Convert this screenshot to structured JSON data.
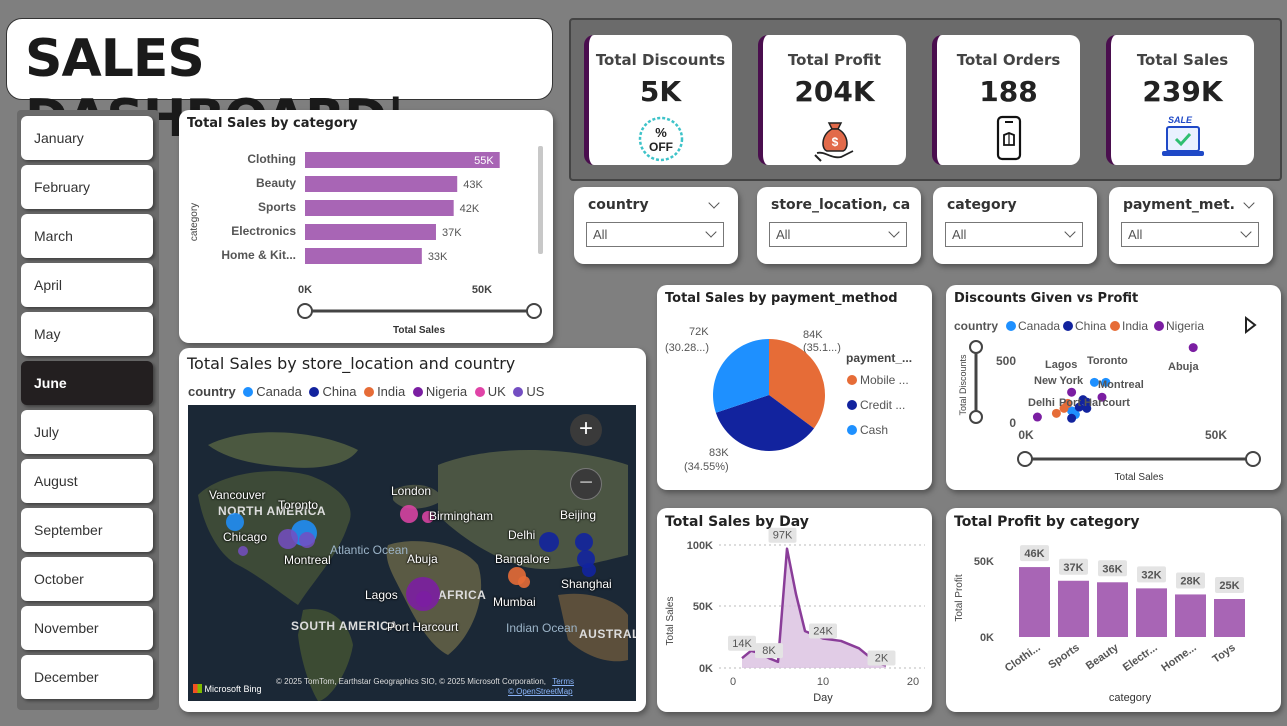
{
  "header": {
    "title": "SALES DASHBOARD|"
  },
  "kpis": [
    {
      "label": "Total Discounts",
      "value": "5K",
      "icon": "percent-off-badge-icon"
    },
    {
      "label": "Total Profit",
      "value": "204K",
      "icon": "money-bag-icon"
    },
    {
      "label": "Total Orders",
      "value": "188",
      "icon": "smartphone-order-icon"
    },
    {
      "label": "Total Sales",
      "value": "239K",
      "icon": "laptop-sale-icon"
    }
  ],
  "months": [
    "January",
    "February",
    "March",
    "April",
    "May",
    "June",
    "July",
    "August",
    "September",
    "October",
    "November",
    "December"
  ],
  "selected_month": "June",
  "slicers": [
    {
      "label": "country",
      "value": "All"
    },
    {
      "label": "store_location, ca...",
      "value": "All"
    },
    {
      "label": "category",
      "value": "All"
    },
    {
      "label": "payment_met...",
      "value": "All"
    }
  ],
  "colors": {
    "accent": "#a865b5",
    "nigeria": "#7b1ea2",
    "canada": "#1e90ff",
    "china": "#12239e",
    "india": "#e66c37",
    "uk": "#e044a7",
    "us": "#744ec2",
    "kpi_border": "#4a0e4e"
  },
  "sales_by_category": {
    "title": "Total Sales by category",
    "ylabel": "category",
    "xlabel": "Total Sales",
    "ticks": [
      "0K",
      "50K"
    ],
    "rows": [
      {
        "label": "Clothing",
        "value_label": "55K"
      },
      {
        "label": "Beauty",
        "value_label": "43K"
      },
      {
        "label": "Sports",
        "value_label": "42K"
      },
      {
        "label": "Electronics",
        "value_label": "37K"
      },
      {
        "label": "Home & Kit...",
        "value_label": "33K"
      }
    ]
  },
  "map": {
    "title": "Total Sales by store_location and country",
    "legend_title": "country",
    "legend": [
      {
        "name": "Canada",
        "color": "#1e90ff"
      },
      {
        "name": "China",
        "color": "#12239e"
      },
      {
        "name": "India",
        "color": "#e66c37"
      },
      {
        "name": "Nigeria",
        "color": "#7b1ea2"
      },
      {
        "name": "UK",
        "color": "#e044a7"
      },
      {
        "name": "US",
        "color": "#744ec2"
      }
    ],
    "cities": [
      "Vancouver",
      "Toronto",
      "Chicago",
      "Montreal",
      "London",
      "Birmingham",
      "Delhi",
      "Beijing",
      "Bangalore",
      "Abuja",
      "Lagos",
      "Port Harcourt",
      "Mumbai",
      "Shanghai"
    ],
    "regions": [
      "NORTH AMERICA",
      "AFRICA",
      "SOUTH AMERICA",
      "AUSTRALIA"
    ],
    "oceans": [
      "Atlantic Ocean",
      "Indian Ocean"
    ],
    "attribution": "© 2025 TomTom, Earthstar Geographics SIO, © 2025 Microsoft Corporation,",
    "terms": "Terms",
    "osm": "© OpenStreetMap",
    "bing": "Microsoft Bing"
  },
  "payment": {
    "title": "Total Sales by payment_method",
    "legend_title": "payment_...",
    "slices": [
      {
        "name": "Mobile ...",
        "value": "84K",
        "pct": "(35.1...)",
        "color": "#e66c37"
      },
      {
        "name": "Credit ...",
        "value": "83K",
        "pct": "(34.55%)",
        "color": "#12239e"
      },
      {
        "name": "Cash",
        "value": "72K",
        "pct": "(30.28...)",
        "color": "#1e90ff"
      }
    ]
  },
  "discounts": {
    "title": "Discounts Given vs Profit",
    "legend_title": "country",
    "legend": [
      {
        "name": "Canada",
        "color": "#1e90ff"
      },
      {
        "name": "China",
        "color": "#12239e"
      },
      {
        "name": "India",
        "color": "#e66c37"
      },
      {
        "name": "Nigeria",
        "color": "#7b1ea2"
      }
    ],
    "ylabel": "Total Discounts",
    "xlabel": "Total Sales",
    "yticks": [
      "500",
      "0"
    ],
    "xticks": [
      "0K",
      "50K"
    ],
    "labels": [
      "Lagos",
      "Toronto",
      "New York",
      "Montreal",
      "Abuja",
      "Delhi",
      "Port Harcourt"
    ]
  },
  "sales_by_day": {
    "title": "Total Sales by Day",
    "xlabel": "Day",
    "ylabel": "Total Sales",
    "yticks": [
      "100K",
      "50K",
      "0K"
    ],
    "xticks": [
      "0",
      "10",
      "20"
    ],
    "annotations": [
      "14K",
      "8K",
      "97K",
      "24K",
      "2K"
    ]
  },
  "profit_by_category": {
    "title": "Total Profit by category",
    "xlabel": "category",
    "ylabel": "Total Profit",
    "yticks": [
      "50K",
      "0K"
    ]
  },
  "chart_data": [
    {
      "type": "bar",
      "title": "Total Sales by category",
      "categories": [
        "Clothing",
        "Beauty",
        "Sports",
        "Electronics",
        "Home & Kit..."
      ],
      "values": [
        55,
        43,
        42,
        37,
        33
      ],
      "xlabel": "Total Sales",
      "ylabel": "category",
      "xlim": [
        0,
        57
      ],
      "orientation": "horizontal"
    },
    {
      "type": "pie",
      "title": "Total Sales by payment_method",
      "categories": [
        "Mobile ...",
        "Credit ...",
        "Cash"
      ],
      "values": [
        84,
        83,
        72
      ]
    },
    {
      "type": "scatter",
      "title": "Discounts Given vs Profit",
      "xlabel": "Total Sales",
      "ylabel": "Total Discounts",
      "xlim": [
        0,
        65
      ],
      "ylim": [
        0,
        650
      ],
      "series": [
        {
          "name": "Canada",
          "points": [
            [
              18,
              320
            ],
            [
              21,
              320
            ],
            [
              12,
              90
            ],
            [
              13,
              60
            ]
          ]
        },
        {
          "name": "China",
          "points": [
            [
              12,
              30
            ],
            [
              14,
              120
            ],
            [
              15,
              180
            ],
            [
              16,
              160
            ],
            [
              16,
              110
            ]
          ]
        },
        {
          "name": "India",
          "points": [
            [
              8,
              70
            ],
            [
              10,
              110
            ],
            [
              11,
              150
            ]
          ]
        },
        {
          "name": "Nigeria",
          "points": [
            [
              12,
              240
            ],
            [
              20,
              200
            ],
            [
              44,
              600
            ],
            [
              3,
              40
            ]
          ]
        }
      ]
    },
    {
      "type": "area",
      "title": "Total Sales by Day",
      "xlabel": "Day",
      "ylabel": "Total Sales",
      "xlim": [
        0,
        20
      ],
      "ylim": [
        0,
        105
      ],
      "x": [
        1,
        2,
        3,
        4,
        5,
        6,
        7,
        8,
        10,
        12,
        14,
        16,
        17
      ],
      "values": [
        8,
        14,
        12,
        8,
        5,
        97,
        60,
        30,
        24,
        22,
        16,
        4,
        2
      ]
    },
    {
      "type": "bar",
      "title": "Total Profit by category",
      "categories": [
        "Clothi...",
        "Sports",
        "Beauty",
        "Electr...",
        "Home...",
        "Toys"
      ],
      "values": [
        46,
        37,
        36,
        32,
        28,
        25
      ],
      "value_labels": [
        "46K",
        "37K",
        "36K",
        "32K",
        "28K",
        "25K"
      ],
      "xlabel": "category",
      "ylabel": "Total Profit",
      "ylim": [
        0,
        60
      ]
    }
  ]
}
